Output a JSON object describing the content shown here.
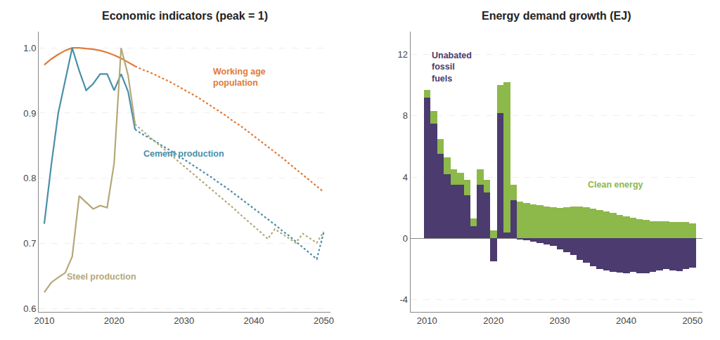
{
  "chart_data": [
    {
      "type": "line",
      "title": "Economic indicators (peak = 1)",
      "xlim": [
        2009.2,
        2051
      ],
      "xticks": [
        2010,
        2020,
        2030,
        2040,
        2050
      ],
      "ylim": [
        0.595,
        1.025
      ],
      "yticks": [
        0.6,
        0.7,
        0.8,
        0.9,
        {
          "value": 1.0,
          "label": "1.0"
        }
      ],
      "grid": "y",
      "series": [
        {
          "color": "#E07B39",
          "line_style": "solid",
          "x": [
            2010,
            2011,
            2012,
            2013,
            2014,
            2015,
            2016,
            2017,
            2018,
            2019,
            2020,
            2021,
            2022,
            2023
          ],
          "values": [
            0.974,
            0.983,
            0.99,
            0.996,
            1.0,
            1.0,
            0.999,
            0.998,
            0.996,
            0.993,
            0.989,
            0.984,
            0.978,
            0.972
          ]
        },
        {
          "color": "#E07B39",
          "line_style": "dotted",
          "x": [
            2023,
            2024,
            2025,
            2026,
            2027,
            2028,
            2029,
            2030,
            2031,
            2032,
            2033,
            2034,
            2035,
            2036,
            2037,
            2038,
            2039,
            2040,
            2041,
            2042,
            2043,
            2044,
            2045,
            2046,
            2047,
            2048,
            2049,
            2050
          ],
          "values": [
            0.972,
            0.967,
            0.963,
            0.958,
            0.953,
            0.948,
            0.942,
            0.936,
            0.93,
            0.924,
            0.917,
            0.91,
            0.903,
            0.896,
            0.888,
            0.881,
            0.873,
            0.865,
            0.857,
            0.849,
            0.84,
            0.832,
            0.823,
            0.814,
            0.805,
            0.796,
            0.788,
            0.779
          ]
        },
        {
          "color": "#4A8FA8",
          "line_style": "solid",
          "x": [
            2010,
            2011,
            2012,
            2013,
            2014,
            2015,
            2016,
            2017,
            2018,
            2019,
            2020,
            2021,
            2022,
            2023
          ],
          "values": [
            0.73,
            0.82,
            0.9,
            0.95,
            1.0,
            0.965,
            0.935,
            0.945,
            0.96,
            0.96,
            0.935,
            0.96,
            0.933,
            0.875
          ]
        },
        {
          "color": "#4A8FA8",
          "line_style": "dotted",
          "x": [
            2023,
            2024,
            2025,
            2026,
            2027,
            2028,
            2029,
            2030,
            2031,
            2032,
            2033,
            2034,
            2035,
            2036,
            2037,
            2038,
            2039,
            2040,
            2041,
            2042,
            2043,
            2044,
            2045,
            2046,
            2047,
            2048,
            2049,
            2050
          ],
          "values": [
            0.875,
            0.868,
            0.862,
            0.856,
            0.849,
            0.843,
            0.836,
            0.829,
            0.822,
            0.815,
            0.808,
            0.801,
            0.793,
            0.786,
            0.778,
            0.77,
            0.762,
            0.754,
            0.746,
            0.737,
            0.729,
            0.72,
            0.712,
            0.703,
            0.694,
            0.685,
            0.676,
            0.717
          ]
        },
        {
          "color": "#B5A878",
          "line_style": "solid",
          "x": [
            2010,
            2011,
            2012,
            2013,
            2014,
            2015,
            2016,
            2017,
            2018,
            2019,
            2020,
            2021,
            2022,
            2023
          ],
          "values": [
            0.625,
            0.64,
            0.648,
            0.655,
            0.68,
            0.773,
            0.763,
            0.753,
            0.758,
            0.755,
            0.823,
            1.0,
            0.958,
            0.883
          ]
        },
        {
          "color": "#B5A878",
          "line_style": "dotted",
          "x": [
            2023,
            2024,
            2025,
            2026,
            2027,
            2028,
            2029,
            2030,
            2031,
            2032,
            2033,
            2034,
            2035,
            2036,
            2037,
            2038,
            2039,
            2040,
            2041,
            2042,
            2043,
            2044,
            2045,
            2046,
            2047,
            2048,
            2049,
            2050
          ],
          "values": [
            0.883,
            0.873,
            0.864,
            0.855,
            0.846,
            0.837,
            0.828,
            0.819,
            0.81,
            0.801,
            0.792,
            0.783,
            0.774,
            0.764,
            0.755,
            0.745,
            0.736,
            0.726,
            0.717,
            0.707,
            0.722,
            0.715,
            0.708,
            0.701,
            0.715,
            0.708,
            0.701,
            0.718
          ]
        }
      ],
      "annotations": [
        {
          "text": "Working age\npopulation",
          "x": 2034,
          "y": 0.955,
          "color": "#E07B39"
        },
        {
          "text": "Cement production",
          "x": 2024,
          "y": 0.838,
          "color": "#4A8FA8"
        },
        {
          "text": "Steel production",
          "x": 2013,
          "y": 0.649,
          "color": "#B5A878"
        }
      ]
    },
    {
      "type": "bar",
      "title": "Energy demand growth (EJ)",
      "stacked": true,
      "xlim": [
        2007.5,
        2051.5
      ],
      "xticks": [
        2010,
        2020,
        2030,
        2040,
        2050
      ],
      "ylim": [
        -4.8,
        13.5
      ],
      "yticks": [
        -4,
        0,
        4,
        8,
        12
      ],
      "grid": "y",
      "series": [
        {
          "color": "#4B3B6E",
          "x": [
            2010,
            2011,
            2012,
            2013,
            2014,
            2015,
            2016,
            2017,
            2018,
            2019,
            2020,
            2021,
            2022,
            2023,
            2024,
            2025,
            2026,
            2027,
            2028,
            2029,
            2030,
            2031,
            2032,
            2033,
            2034,
            2035,
            2036,
            2037,
            2038,
            2039,
            2040,
            2041,
            2042,
            2043,
            2044,
            2045,
            2046,
            2047,
            2048,
            2049,
            2050
          ],
          "values": [
            9.2,
            7.5,
            5.5,
            4.2,
            3.5,
            3.5,
            2.8,
            0.8,
            3.5,
            3.0,
            -1.5,
            8.2,
            0.4,
            2.5,
            -0.05,
            -0.1,
            -0.2,
            -0.3,
            -0.4,
            -0.5,
            -0.7,
            -0.9,
            -1.1,
            -1.4,
            -1.6,
            -1.8,
            -2.0,
            -2.1,
            -2.2,
            -2.25,
            -2.3,
            -2.2,
            -2.3,
            -2.3,
            -2.2,
            -2.1,
            -2.0,
            -2.1,
            -2.15,
            -2.0,
            -1.9
          ]
        },
        {
          "color": "#8DB84A",
          "x": [
            2010,
            2011,
            2012,
            2013,
            2014,
            2015,
            2016,
            2017,
            2018,
            2019,
            2020,
            2021,
            2022,
            2023,
            2024,
            2025,
            2026,
            2027,
            2028,
            2029,
            2030,
            2031,
            2032,
            2033,
            2034,
            2035,
            2036,
            2037,
            2038,
            2039,
            2040,
            2041,
            2042,
            2043,
            2044,
            2045,
            2046,
            2047,
            2048,
            2049,
            2050
          ],
          "values": [
            0.5,
            0.8,
            1.0,
            1.1,
            1.0,
            0.8,
            1.0,
            0.5,
            1.0,
            0.8,
            0.5,
            1.8,
            9.8,
            1.0,
            2.4,
            2.3,
            2.2,
            2.15,
            2.1,
            2.05,
            2.0,
            2.05,
            2.1,
            2.1,
            2.05,
            1.95,
            1.85,
            1.75,
            1.65,
            1.55,
            1.45,
            1.35,
            1.25,
            1.2,
            1.1,
            1.1,
            1.1,
            1.05,
            1.05,
            1.05,
            1.0
          ]
        }
      ],
      "annotations": [
        {
          "text": "Unabated\nfossil\nfuels",
          "x": 2010.5,
          "y": 11.2,
          "color": "#4B3B6E"
        },
        {
          "text": "Clean energy",
          "x": 2034,
          "y": 3.5,
          "color": "#8DB84A"
        }
      ]
    }
  ]
}
